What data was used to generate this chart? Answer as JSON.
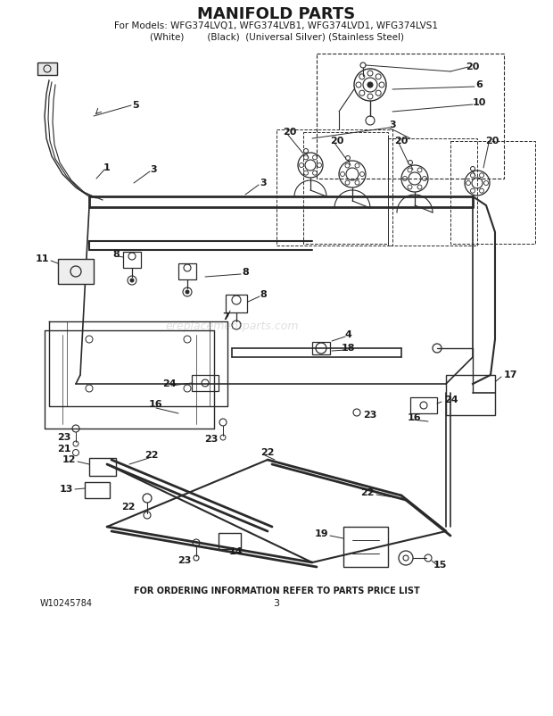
{
  "title": "MANIFOLD PARTS",
  "subtitle1": "For Models: WFG374LVQ1, WFG374LVB1, WFG374LVD1, WFG374LVS1",
  "subtitle2": "(White)        (Black)  (Universal Silver) (Stainless Steel)",
  "footer": "FOR ORDERING INFORMATION REFER TO PARTS PRICE LIST",
  "part_number": "W10245784",
  "page": "3",
  "bg_color": "#ffffff",
  "diagram_color": "#2a2a2a",
  "text_color": "#1a1a1a",
  "watermark": "ereplacementparts.com"
}
